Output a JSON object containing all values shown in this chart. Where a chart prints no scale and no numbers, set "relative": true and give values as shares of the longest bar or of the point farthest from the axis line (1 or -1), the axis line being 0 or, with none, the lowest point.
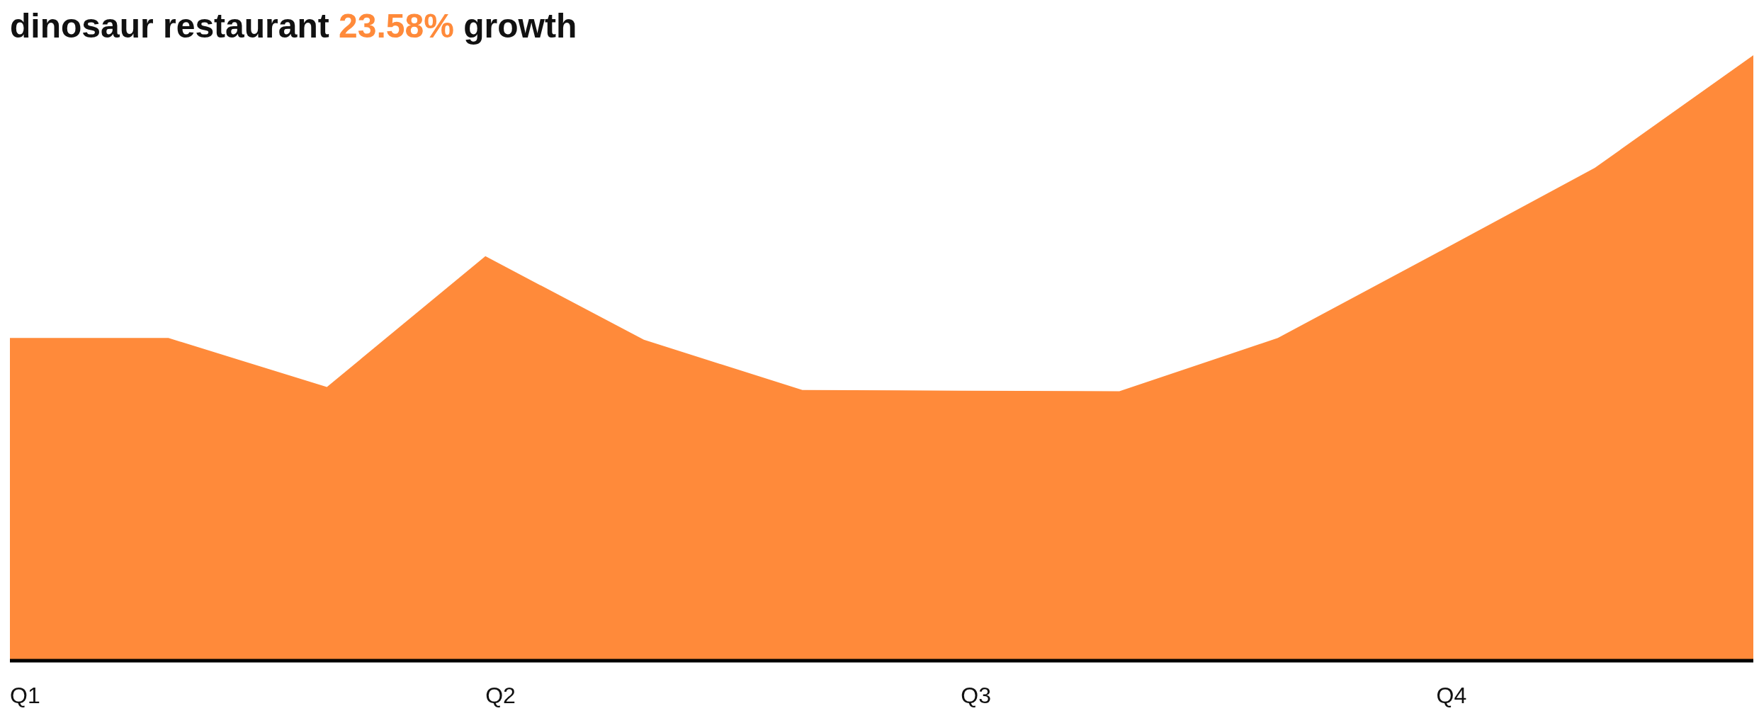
{
  "chart_data": {
    "type": "area",
    "title": "dinosaur restaurant 23.58% growth",
    "categories": [
      "Q1",
      null,
      null,
      "Q2",
      null,
      null,
      "Q3",
      null,
      null,
      "Q4",
      null,
      null
    ],
    "relative": true,
    "series": [
      {
        "color": "#ff8a3a",
        "values": [
          0.533,
          0.533,
          0.452,
          0.668,
          0.53,
          0.447,
          0.446,
          0.445,
          0.533,
          0.673,
          0.814,
          1.0
        ]
      }
    ]
  }
}
